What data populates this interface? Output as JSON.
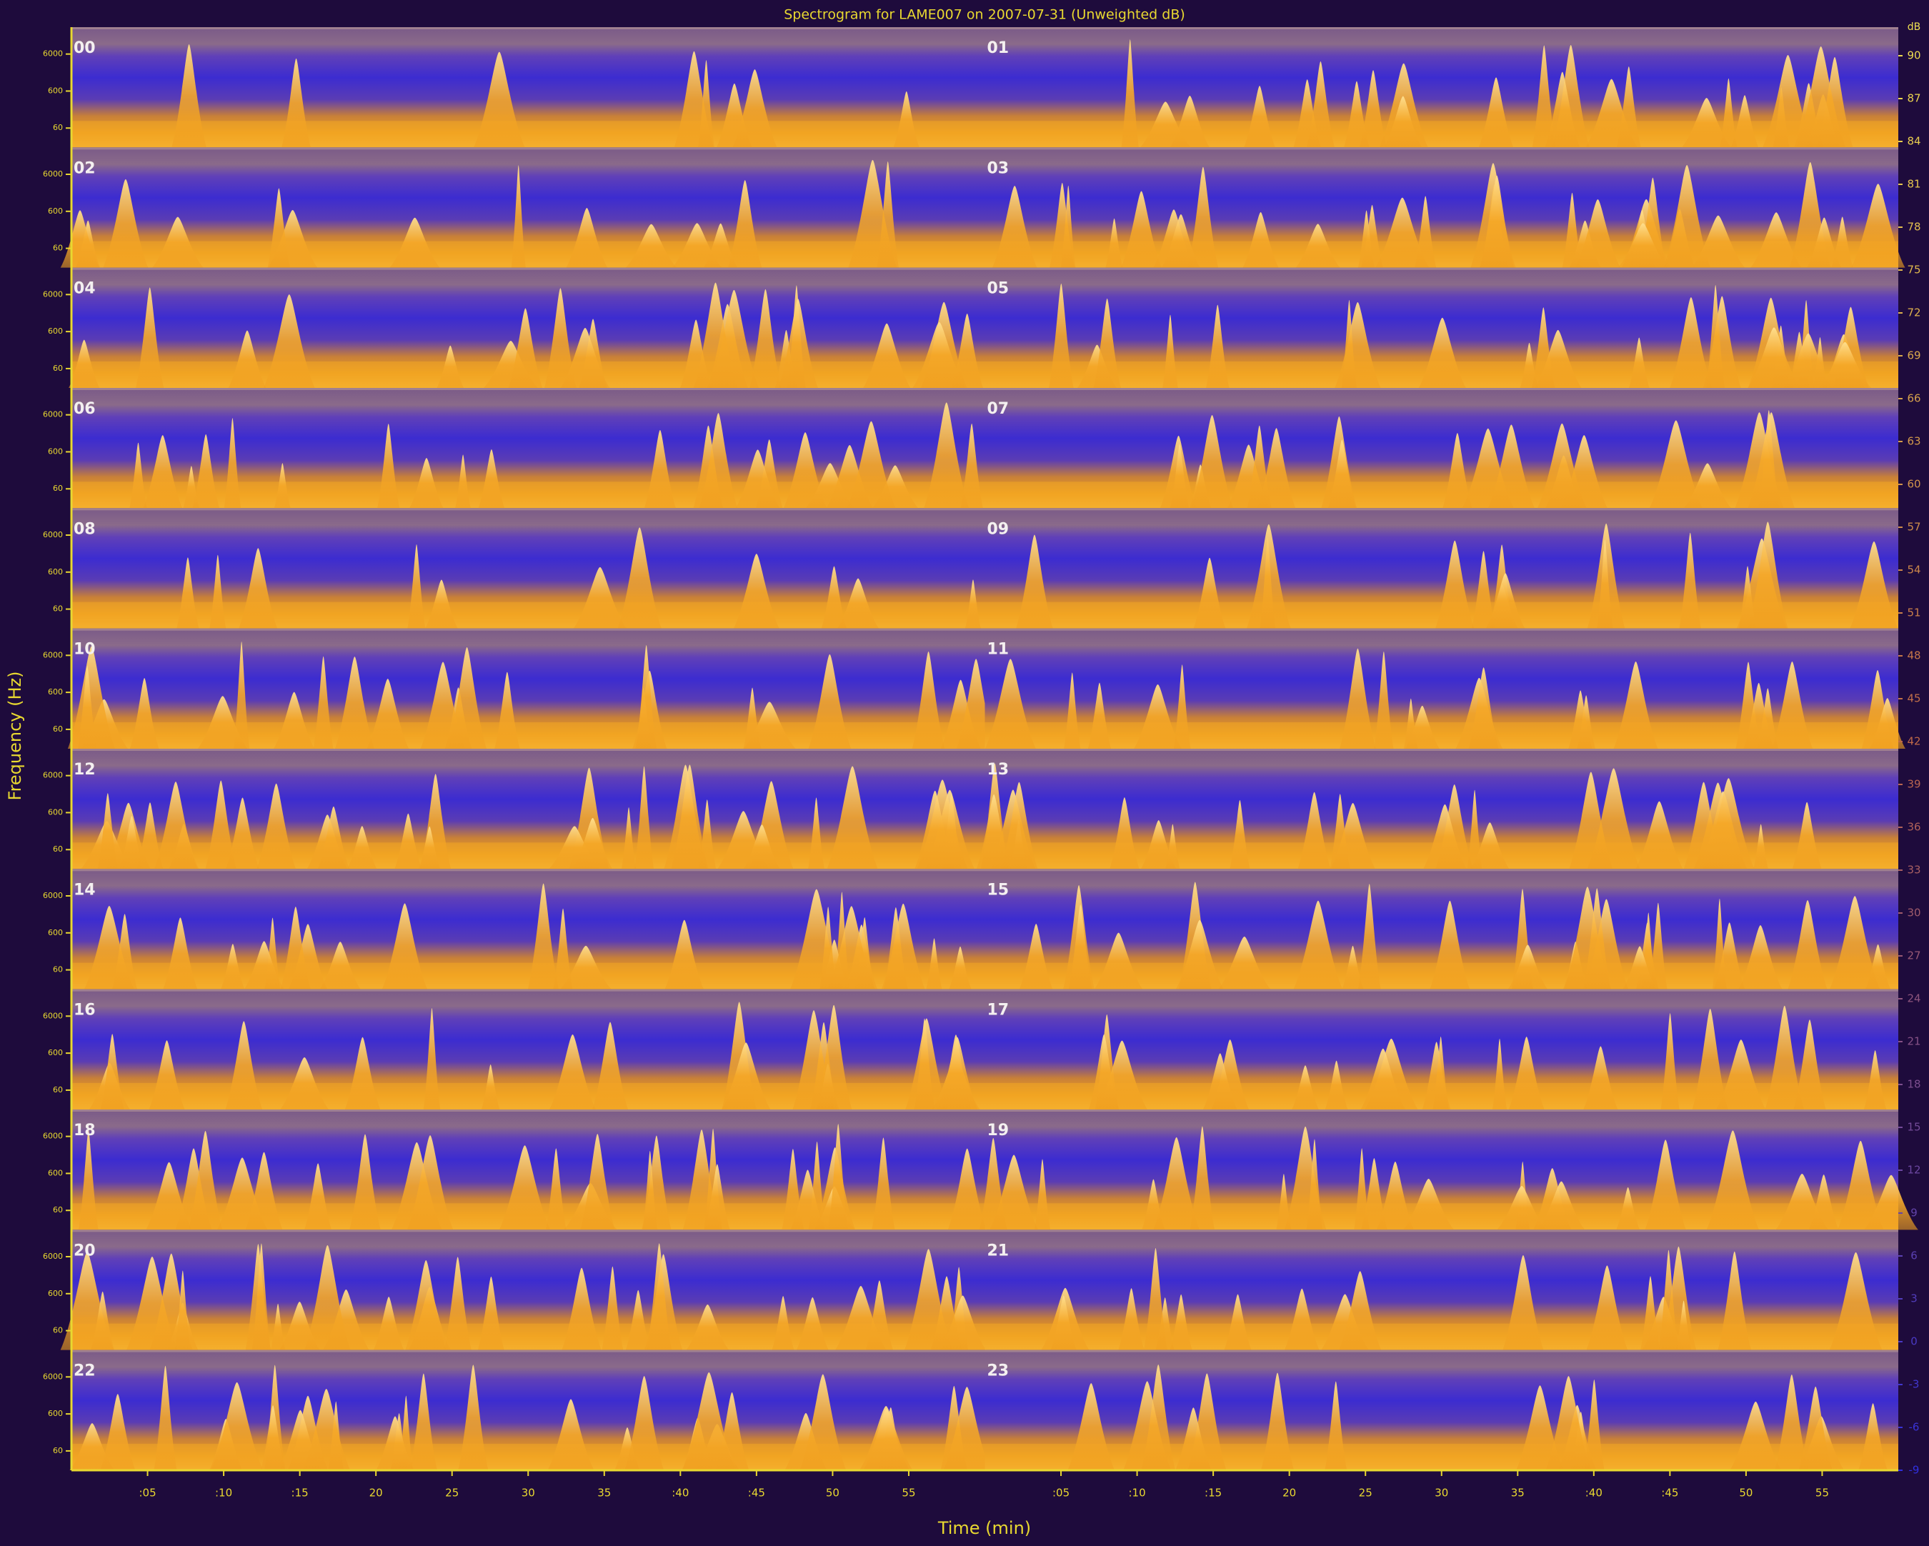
{
  "chart_data": {
    "type": "spectrogram",
    "title": "Spectrogram for LAME007 on 2007-07-31 (Unweighted dB)",
    "x_label": "Time (min)",
    "y_label": "Frequency (Hz)",
    "hours": [
      "00",
      "01",
      "02",
      "03",
      "04",
      "05",
      "06",
      "07",
      "08",
      "09",
      "10",
      "11",
      "12",
      "13",
      "14",
      "15",
      "16",
      "17",
      "18",
      "19",
      "20",
      "21",
      "22",
      "23"
    ],
    "xlim": [
      0,
      60
    ],
    "xticks": [
      {
        "value": 5,
        "label": ":05"
      },
      {
        "value": 10,
        "label": ":10"
      },
      {
        "value": 15,
        "label": ":15"
      },
      {
        "value": 20,
        "label": "20"
      },
      {
        "value": 25,
        "label": "25"
      },
      {
        "value": 30,
        "label": "30"
      },
      {
        "value": 35,
        "label": "35"
      },
      {
        "value": 40,
        "label": ":40"
      },
      {
        "value": 45,
        "label": ":45"
      },
      {
        "value": 50,
        "label": "50"
      },
      {
        "value": 55,
        "label": "55"
      }
    ],
    "ylim": [
      18,
      32000
    ],
    "yticks": [
      60,
      600,
      6000
    ],
    "log_scale": true,
    "colorbar": {
      "label": "dB",
      "lim": [
        -9,
        92
      ],
      "ticks": [
        90,
        87,
        84,
        81,
        78,
        75,
        72,
        69,
        66,
        63,
        60,
        57,
        54,
        51,
        48,
        45,
        42,
        39,
        36,
        33,
        30,
        27,
        24,
        21,
        18,
        15,
        12,
        9,
        6,
        3,
        0,
        -3,
        -6,
        -9
      ],
      "colormap": [
        "#3030e0",
        "#c06848",
        "#f0e050"
      ]
    }
  }
}
